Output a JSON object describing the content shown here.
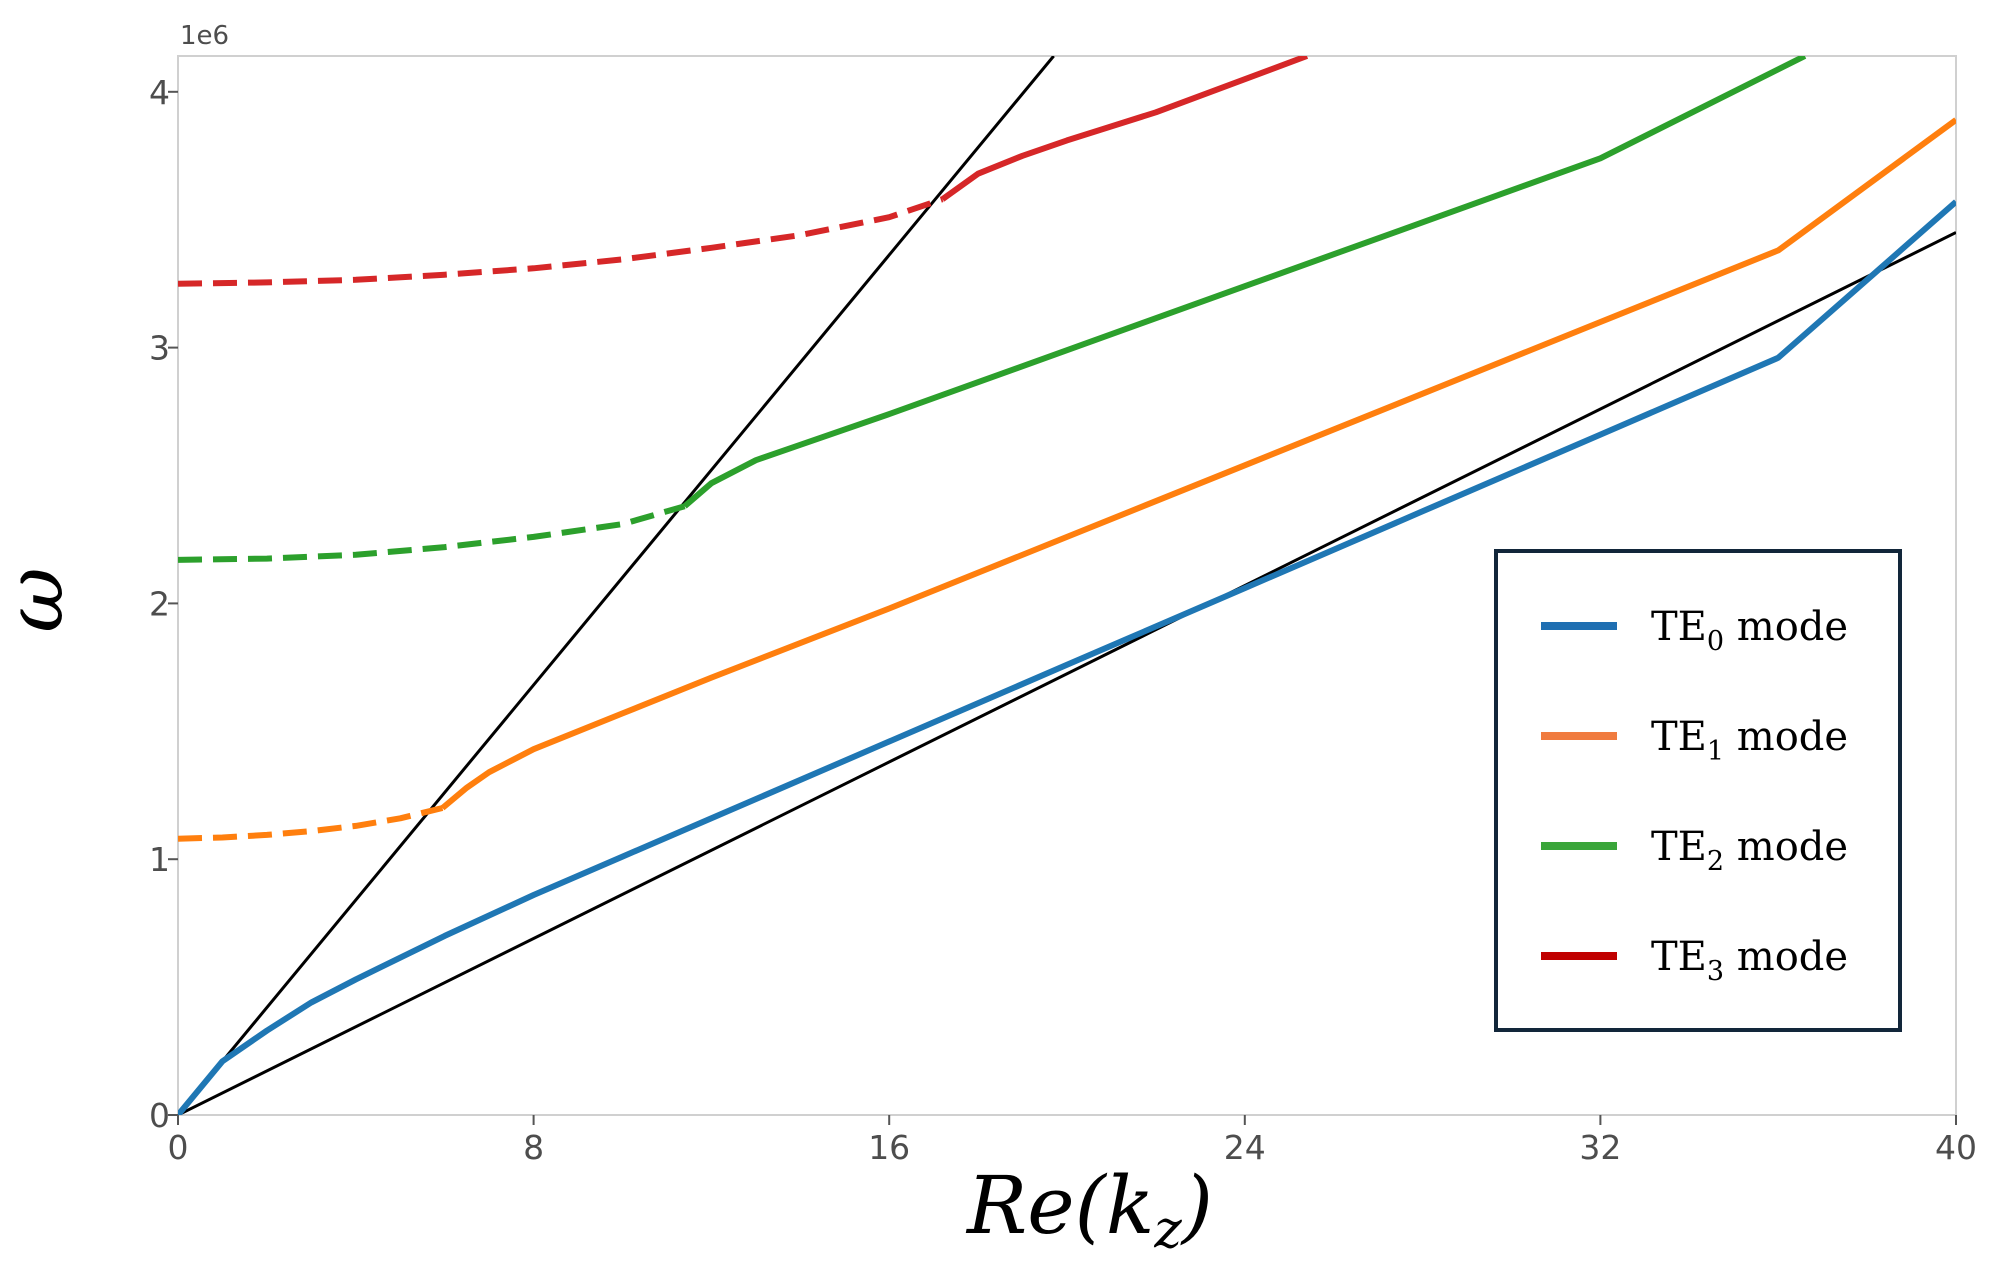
{
  "chart_data": {
    "type": "line",
    "xlabel_main": "Re(k",
    "xlabel_sub": "z",
    "xlabel_close": ")",
    "ylabel": "ω",
    "offset_text": "1e6",
    "xlim": [
      0,
      40
    ],
    "ylim": [
      0,
      4.14
    ],
    "xticks": [
      0,
      8,
      16,
      24,
      32,
      40
    ],
    "xtick_labels": [
      "0",
      "8",
      "16",
      "24",
      "32",
      "40"
    ],
    "yticks": [
      0,
      1,
      2,
      3,
      4
    ],
    "ytick_labels": [
      "0",
      "1",
      "2",
      "3",
      "4"
    ],
    "grid": false,
    "legend_placement": "lower-right",
    "light_lines": [
      {
        "color": "#000000",
        "x": [
          0,
          19.7
        ],
        "y": [
          0,
          4.14
        ]
      },
      {
        "color": "#000000",
        "x": [
          0,
          40
        ],
        "y": [
          0,
          3.45
        ]
      }
    ],
    "series": [
      {
        "name": "TE₀ mode",
        "label_main": "TE",
        "label_sub": "0",
        "label_rest": " mode",
        "color": "#1f77b4",
        "segments": [
          {
            "style": "solid",
            "x": [
              0,
              1,
              2,
              3,
              4,
              6,
              8,
              10,
              12,
              16,
              20,
              24,
              28,
              32,
              36,
              40
            ],
            "y": [
              0,
              0.21,
              0.33,
              0.44,
              0.53,
              0.7,
              0.86,
              1.01,
              1.16,
              1.46,
              1.76,
              2.06,
              2.36,
              2.66,
              2.96,
              3.57
            ]
          }
        ]
      },
      {
        "name": "TE₁ mode",
        "label_main": "TE",
        "label_sub": "1",
        "label_rest": " mode",
        "color": "#ff7f0e",
        "segments": [
          {
            "style": "dashed",
            "x": [
              0,
              1,
              2,
              3,
              4,
              5,
              5.95
            ],
            "y": [
              1.08,
              1.085,
              1.095,
              1.11,
              1.13,
              1.16,
              1.2
            ]
          },
          {
            "style": "solid",
            "x": [
              5.95,
              6.5,
              7,
              8,
              10,
              12,
              16,
              20,
              24,
              28,
              32,
              36,
              40
            ],
            "y": [
              1.2,
              1.28,
              1.34,
              1.43,
              1.57,
              1.71,
              1.98,
              2.26,
              2.54,
              2.82,
              3.1,
              3.38,
              3.89
            ]
          }
        ]
      },
      {
        "name": "TE₂ mode",
        "label_main": "TE",
        "label_sub": "2",
        "label_rest": " mode",
        "color": "#2ca02c",
        "segments": [
          {
            "style": "dashed",
            "x": [
              0,
              2,
              4,
              6,
              8,
              10,
              11.4
            ],
            "y": [
              2.17,
              2.175,
              2.19,
              2.22,
              2.26,
              2.31,
              2.38
            ]
          },
          {
            "style": "solid",
            "x": [
              11.4,
              12,
              13,
              14,
              16,
              20,
              24,
              28,
              32,
              36.6
            ],
            "y": [
              2.38,
              2.47,
              2.56,
              2.62,
              2.74,
              2.99,
              3.24,
              3.49,
              3.74,
              4.14
            ]
          }
        ]
      },
      {
        "name": "TE₃ mode",
        "label_main": "TE",
        "label_sub": "3",
        "label_rest": " mode",
        "color": "#d62728",
        "segments": [
          {
            "style": "dashed",
            "x": [
              0,
              2,
              4,
              6,
              8,
              10,
              12,
              14,
              16,
              17.2
            ],
            "y": [
              3.25,
              3.255,
              3.265,
              3.285,
              3.31,
              3.345,
              3.39,
              3.44,
              3.51,
              3.58
            ]
          },
          {
            "style": "solid",
            "x": [
              17.2,
              18,
              19,
              20,
              22,
              25.4
            ],
            "y": [
              3.58,
              3.68,
              3.75,
              3.81,
              3.92,
              4.14
            ]
          }
        ]
      }
    ]
  }
}
